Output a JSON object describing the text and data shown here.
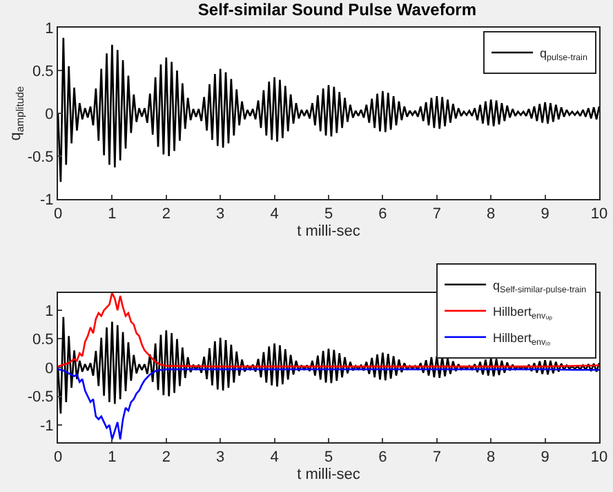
{
  "chart_data": [
    {
      "type": "line",
      "title": "Self-similar Sound Pulse Waveform",
      "xlabel": "t milli-sec",
      "ylabel": "q$_{amplitude}$",
      "legend": "top right",
      "grid": false,
      "xlim": [
        0,
        10
      ],
      "xticks": [
        0,
        1,
        2,
        3,
        4,
        5,
        6,
        7,
        8,
        9,
        10
      ],
      "ylim": [
        -1,
        1
      ],
      "yticks": [
        -1,
        -0.5,
        0,
        0.5,
        1
      ],
      "x": [
        0,
        0.05,
        0.1,
        0.15,
        0.2,
        0.25,
        0.3,
        0.35,
        0.4,
        0.45,
        0.5,
        0.55,
        0.6,
        0.65,
        0.7,
        0.75,
        0.8,
        0.85,
        0.9,
        0.95,
        1,
        1.05,
        1.1,
        1.15,
        1.2,
        1.25,
        1.3,
        1.35,
        1.4,
        1.45,
        1.5,
        1.55,
        1.6,
        1.65,
        1.7,
        1.75,
        1.8,
        1.85,
        1.9,
        1.95,
        2,
        2.05,
        2.1,
        2.15,
        2.2,
        2.25,
        2.3,
        2.35,
        2.4,
        2.45,
        2.5,
        2.55,
        2.6,
        2.65,
        2.7,
        2.75,
        2.8,
        2.85,
        2.9,
        2.95,
        3,
        3.05,
        3.1,
        3.15,
        3.2,
        3.25,
        3.3,
        3.35,
        3.4,
        3.45,
        3.5,
        3.55,
        3.6,
        3.65,
        3.7,
        3.75,
        3.8,
        3.85,
        3.9,
        3.95,
        4,
        4.05,
        4.1,
        4.15,
        4.2,
        4.25,
        4.3,
        4.35,
        4.4,
        4.45,
        4.5,
        4.55,
        4.6,
        4.65,
        4.7,
        4.75,
        4.8,
        4.85,
        4.9,
        4.95,
        5,
        5.05,
        5.1,
        5.15,
        5.2,
        5.25,
        5.3,
        5.35,
        5.4,
        5.45,
        5.5,
        5.55,
        5.6,
        5.65,
        5.7,
        5.75,
        5.8,
        5.85,
        5.9,
        5.95,
        6,
        6.05,
        6.1,
        6.15,
        6.2,
        6.25,
        6.3,
        6.35,
        6.4,
        6.45,
        6.5,
        6.55,
        6.6,
        6.65,
        6.7,
        6.75,
        6.8,
        6.85,
        6.9,
        6.95,
        7,
        7.05,
        7.1,
        7.15,
        7.2,
        7.25,
        7.3,
        7.35,
        7.4,
        7.45,
        7.5,
        7.55,
        7.6,
        7.65,
        7.7,
        7.75,
        7.8,
        7.85,
        7.9,
        7.95,
        8,
        8.05,
        8.1,
        8.15,
        8.2,
        8.25,
        8.3,
        8.35,
        8.4,
        8.45,
        8.5,
        8.55,
        8.6,
        8.65,
        8.7,
        8.75,
        8.8,
        8.85,
        8.9,
        8.95,
        9,
        9.05,
        9.1,
        9.15,
        9.2,
        9.25,
        9.3,
        9.35,
        9.4,
        9.45,
        9.5,
        9.55,
        9.6,
        9.65,
        9.7,
        9.75,
        9.8,
        9.85,
        9.9,
        9.95,
        10
      ],
      "series": [
        {
          "name": "q$_{pulse-train}$",
          "color": "#000000",
          "values": [
            0,
            -0.8,
            0.88,
            -0.6,
            0.55,
            -0.35,
            0.3,
            -0.2,
            0.12,
            -0.07,
            0.06,
            -0.05,
            0.08,
            -0.14,
            0.29,
            -0.32,
            0.52,
            -0.49,
            0.7,
            -0.6,
            0.8,
            -0.63,
            0.74,
            -0.55,
            0.62,
            -0.41,
            0.44,
            -0.23,
            0.22,
            -0.1,
            0.06,
            -0.04,
            0.06,
            -0.11,
            0.23,
            -0.25,
            0.42,
            -0.39,
            0.57,
            -0.48,
            0.65,
            -0.5,
            0.6,
            -0.44,
            0.5,
            -0.32,
            0.35,
            -0.18,
            0.18,
            -0.08,
            0.05,
            -0.04,
            0.05,
            -0.09,
            0.19,
            -0.2,
            0.34,
            -0.31,
            0.46,
            -0.38,
            0.52,
            -0.4,
            0.48,
            -0.35,
            0.4,
            -0.26,
            0.28,
            -0.14,
            0.14,
            -0.07,
            0.04,
            -0.03,
            0.05,
            -0.07,
            0.15,
            -0.17,
            0.27,
            -0.26,
            0.37,
            -0.31,
            0.42,
            -0.33,
            0.39,
            -0.29,
            0.32,
            -0.21,
            0.22,
            -0.12,
            0.12,
            -0.06,
            0.04,
            -0.03,
            0.04,
            -0.06,
            0.12,
            -0.14,
            0.21,
            -0.21,
            0.29,
            -0.26,
            0.33,
            -0.27,
            0.31,
            -0.23,
            0.25,
            -0.17,
            0.18,
            -0.1,
            0.1,
            -0.05,
            0.03,
            -0.03,
            0.04,
            -0.05,
            0.1,
            -0.11,
            0.17,
            -0.17,
            0.23,
            -0.21,
            0.26,
            -0.22,
            0.24,
            -0.19,
            0.2,
            -0.14,
            0.14,
            -0.08,
            0.08,
            -0.04,
            0.03,
            -0.02,
            0.03,
            -0.04,
            0.08,
            -0.09,
            0.13,
            -0.14,
            0.18,
            -0.17,
            0.2,
            -0.18,
            0.19,
            -0.15,
            0.16,
            -0.11,
            0.11,
            -0.06,
            0.06,
            -0.03,
            0.02,
            -0.02,
            0.03,
            -0.03,
            0.06,
            -0.08,
            0.1,
            -0.12,
            0.14,
            -0.14,
            0.16,
            -0.15,
            0.15,
            -0.13,
            0.12,
            -0.09,
            0.09,
            -0.05,
            0.05,
            -0.03,
            0.02,
            -0.02,
            0.02,
            -0.03,
            0.05,
            -0.06,
            0.08,
            -0.09,
            0.11,
            -0.11,
            0.13,
            -0.12,
            0.12,
            -0.1,
            0.1,
            -0.07,
            0.07,
            -0.04,
            0.04,
            -0.02,
            0.02,
            -0.02,
            0.02,
            -0.03,
            0.04,
            -0.04,
            0.06,
            -0.06,
            0.07,
            -0.07,
            0.08
          ]
        }
      ]
    },
    {
      "type": "line",
      "xlabel": "t milli-sec",
      "legend": "top right",
      "grid": false,
      "xlim": [
        0,
        10
      ],
      "xticks": [
        0,
        1,
        2,
        3,
        4,
        5,
        6,
        7,
        8,
        9,
        10
      ],
      "ylim": [
        -1.3,
        1.3
      ],
      "yticks": [
        -1,
        -0.5,
        0,
        0.5,
        1
      ],
      "x": [
        0,
        0.05,
        0.1,
        0.15,
        0.2,
        0.25,
        0.3,
        0.35,
        0.4,
        0.45,
        0.5,
        0.55,
        0.6,
        0.65,
        0.7,
        0.75,
        0.8,
        0.85,
        0.9,
        0.95,
        1,
        1.05,
        1.1,
        1.15,
        1.2,
        1.25,
        1.3,
        1.35,
        1.4,
        1.45,
        1.5,
        1.55,
        1.6,
        1.65,
        1.7,
        1.75,
        1.8,
        1.85,
        1.9,
        1.95,
        2,
        2.05,
        2.1,
        2.15,
        2.2,
        2.25,
        2.3,
        2.35,
        2.4,
        2.45,
        2.5,
        2.55,
        2.6,
        2.65,
        2.7,
        2.75,
        2.8,
        2.85,
        2.9,
        2.95,
        3,
        3.05,
        3.1,
        3.15,
        3.2,
        3.25,
        3.3,
        3.35,
        3.4,
        3.45,
        3.5,
        3.55,
        3.6,
        3.65,
        3.7,
        3.75,
        3.8,
        3.85,
        3.9,
        3.95,
        4,
        4.05,
        4.1,
        4.15,
        4.2,
        4.25,
        4.3,
        4.35,
        4.4,
        4.45,
        4.5,
        4.55,
        4.6,
        4.65,
        4.7,
        4.75,
        4.8,
        4.85,
        4.9,
        4.95,
        5,
        5.05,
        5.1,
        5.15,
        5.2,
        5.25,
        5.3,
        5.35,
        5.4,
        5.45,
        5.5,
        5.55,
        5.6,
        5.65,
        5.7,
        5.75,
        5.8,
        5.85,
        5.9,
        5.95,
        6,
        6.05,
        6.1,
        6.15,
        6.2,
        6.25,
        6.3,
        6.35,
        6.4,
        6.45,
        6.5,
        6.55,
        6.6,
        6.65,
        6.7,
        6.75,
        6.8,
        6.85,
        6.9,
        6.95,
        7,
        7.05,
        7.1,
        7.15,
        7.2,
        7.25,
        7.3,
        7.35,
        7.4,
        7.45,
        7.5,
        7.55,
        7.6,
        7.65,
        7.7,
        7.75,
        7.8,
        7.85,
        7.9,
        7.95,
        8,
        8.05,
        8.1,
        8.15,
        8.2,
        8.25,
        8.3,
        8.35,
        8.4,
        8.45,
        8.5,
        8.55,
        8.6,
        8.65,
        8.7,
        8.75,
        8.8,
        8.85,
        8.9,
        8.95,
        9,
        9.05,
        9.1,
        9.15,
        9.2,
        9.25,
        9.3,
        9.35,
        9.4,
        9.45,
        9.5,
        9.55,
        9.6,
        9.65,
        9.7,
        9.75,
        9.8,
        9.85,
        9.9,
        9.95,
        10
      ],
      "series": [
        {
          "name": "q$_{Self-similar-pulse-train}$",
          "color": "#000000",
          "values": [
            0,
            -0.8,
            0.88,
            -0.6,
            0.55,
            -0.35,
            0.3,
            -0.2,
            0.12,
            -0.07,
            0.06,
            -0.05,
            0.08,
            -0.14,
            0.29,
            -0.32,
            0.52,
            -0.49,
            0.7,
            -0.6,
            0.8,
            -0.63,
            0.74,
            -0.55,
            0.62,
            -0.41,
            0.44,
            -0.23,
            0.22,
            -0.1,
            0.06,
            -0.04,
            0.06,
            -0.11,
            0.23,
            -0.25,
            0.42,
            -0.39,
            0.57,
            -0.48,
            0.65,
            -0.5,
            0.6,
            -0.44,
            0.5,
            -0.32,
            0.35,
            -0.18,
            0.18,
            -0.08,
            0.05,
            -0.04,
            0.05,
            -0.09,
            0.19,
            -0.2,
            0.34,
            -0.31,
            0.46,
            -0.38,
            0.52,
            -0.4,
            0.48,
            -0.35,
            0.4,
            -0.26,
            0.28,
            -0.14,
            0.14,
            -0.07,
            0.04,
            -0.03,
            0.05,
            -0.07,
            0.15,
            -0.17,
            0.27,
            -0.26,
            0.37,
            -0.31,
            0.42,
            -0.33,
            0.39,
            -0.29,
            0.32,
            -0.21,
            0.22,
            -0.12,
            0.12,
            -0.06,
            0.04,
            -0.03,
            0.04,
            -0.06,
            0.12,
            -0.14,
            0.21,
            -0.21,
            0.29,
            -0.26,
            0.33,
            -0.27,
            0.31,
            -0.23,
            0.25,
            -0.17,
            0.18,
            -0.1,
            0.1,
            -0.05,
            0.03,
            -0.03,
            0.04,
            -0.05,
            0.1,
            -0.11,
            0.17,
            -0.17,
            0.23,
            -0.21,
            0.26,
            -0.22,
            0.24,
            -0.19,
            0.2,
            -0.14,
            0.14,
            -0.08,
            0.08,
            -0.04,
            0.03,
            -0.02,
            0.03,
            -0.04,
            0.08,
            -0.09,
            0.13,
            -0.14,
            0.18,
            -0.17,
            0.2,
            -0.18,
            0.19,
            -0.15,
            0.16,
            -0.11,
            0.11,
            -0.06,
            0.06,
            -0.03,
            0.02,
            -0.02,
            0.03,
            -0.03,
            0.06,
            -0.08,
            0.1,
            -0.12,
            0.14,
            -0.14,
            0.16,
            -0.15,
            0.15,
            -0.13,
            0.12,
            -0.09,
            0.09,
            -0.05,
            0.05,
            -0.03,
            0.02,
            -0.02,
            0.02,
            -0.03,
            0.05,
            -0.06,
            0.08,
            -0.09,
            0.11,
            -0.11,
            0.13,
            -0.12,
            0.12,
            -0.1,
            0.1,
            -0.07,
            0.07,
            -0.04,
            0.04,
            -0.02,
            0.02,
            -0.02,
            0.02,
            -0.03,
            0.04,
            -0.04,
            0.06,
            -0.06,
            0.07,
            -0.07,
            0.08
          ]
        },
        {
          "name": "Hillbert$_{envᵤₚ}$",
          "color": "#ff0000",
          "x": [
            0,
            0.1,
            0.2,
            0.3,
            0.35,
            0.4,
            0.45,
            0.5,
            0.55,
            0.6,
            0.65,
            0.7,
            0.75,
            0.8,
            0.85,
            0.9,
            0.95,
            1,
            1.05,
            1.1,
            1.15,
            1.2,
            1.25,
            1.3,
            1.35,
            1.4,
            1.45,
            1.5,
            1.55,
            1.6,
            1.7,
            1.8,
            1.9,
            2,
            3,
            4,
            5,
            6,
            7,
            8,
            9,
            9.5,
            10
          ],
          "values": [
            0.02,
            0.05,
            0.08,
            0.15,
            0.12,
            0.25,
            0.2,
            0.45,
            0.55,
            0.7,
            0.6,
            0.85,
            0.95,
            0.9,
            1,
            1.05,
            1.1,
            1.3,
            1.2,
            1,
            1.25,
            1.05,
            0.9,
            0.95,
            0.8,
            0.75,
            0.6,
            0.55,
            0.4,
            0.3,
            0.2,
            0.1,
            0.05,
            0.03,
            0.02,
            0.02,
            0.02,
            0.02,
            0.02,
            0.02,
            0.02,
            0.03,
            0.04
          ]
        },
        {
          "name": "Hillbert$_{envₗₒ}$",
          "color": "#0000ff",
          "x": [
            0,
            0.1,
            0.2,
            0.3,
            0.35,
            0.4,
            0.45,
            0.5,
            0.55,
            0.6,
            0.65,
            0.7,
            0.75,
            0.8,
            0.85,
            0.9,
            0.95,
            1,
            1.05,
            1.1,
            1.15,
            1.2,
            1.25,
            1.3,
            1.35,
            1.4,
            1.45,
            1.5,
            1.55,
            1.6,
            1.7,
            1.8,
            1.9,
            2,
            3,
            4,
            5,
            6,
            7,
            8,
            9,
            9.5,
            10
          ],
          "values": [
            -0.03,
            -0.05,
            -0.1,
            -0.15,
            -0.12,
            -0.25,
            -0.2,
            -0.4,
            -0.5,
            -0.6,
            -0.55,
            -0.85,
            -0.9,
            -0.85,
            -0.95,
            -1.05,
            -1,
            -1.25,
            -1.1,
            -0.95,
            -1.25,
            -0.9,
            -0.7,
            -0.75,
            -0.6,
            -0.55,
            -0.45,
            -0.4,
            -0.3,
            -0.22,
            -0.12,
            -0.06,
            -0.04,
            -0.03,
            -0.03,
            -0.03,
            -0.03,
            -0.03,
            -0.03,
            -0.03,
            -0.03,
            -0.04,
            -0.04
          ]
        }
      ]
    }
  ]
}
